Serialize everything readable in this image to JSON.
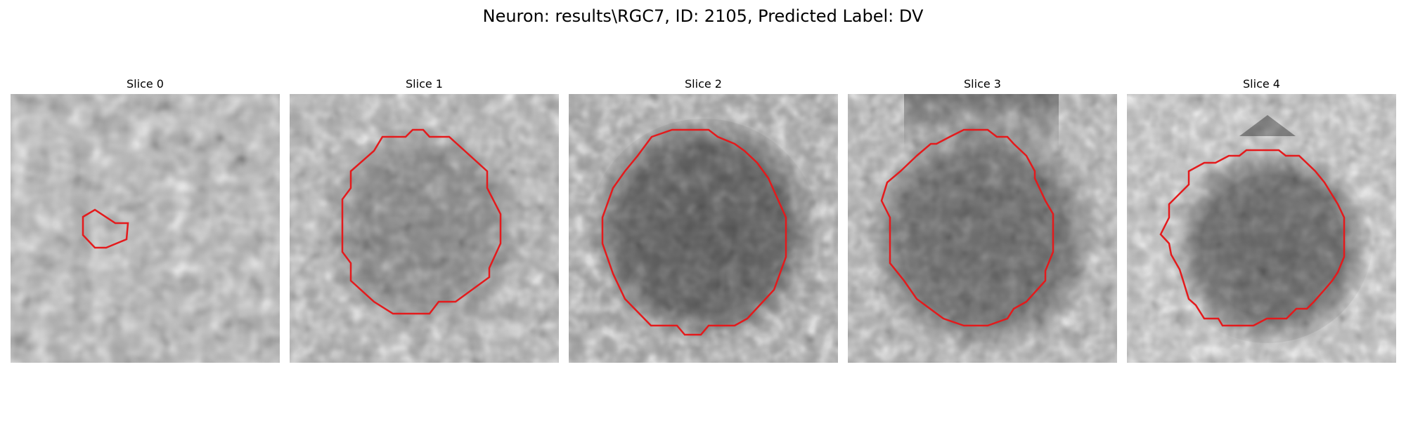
{
  "figure": {
    "title": "Neuron: results\\RGC7, ID: 2105, Predicted Label: DV"
  },
  "panels": [
    {
      "title": "Slice 0"
    },
    {
      "title": "Slice 1"
    },
    {
      "title": "Slice 2"
    },
    {
      "title": "Slice 3"
    },
    {
      "title": "Slice 4"
    }
  ],
  "colors": {
    "contour": "#e41a1c",
    "background": "#ffffff"
  }
}
